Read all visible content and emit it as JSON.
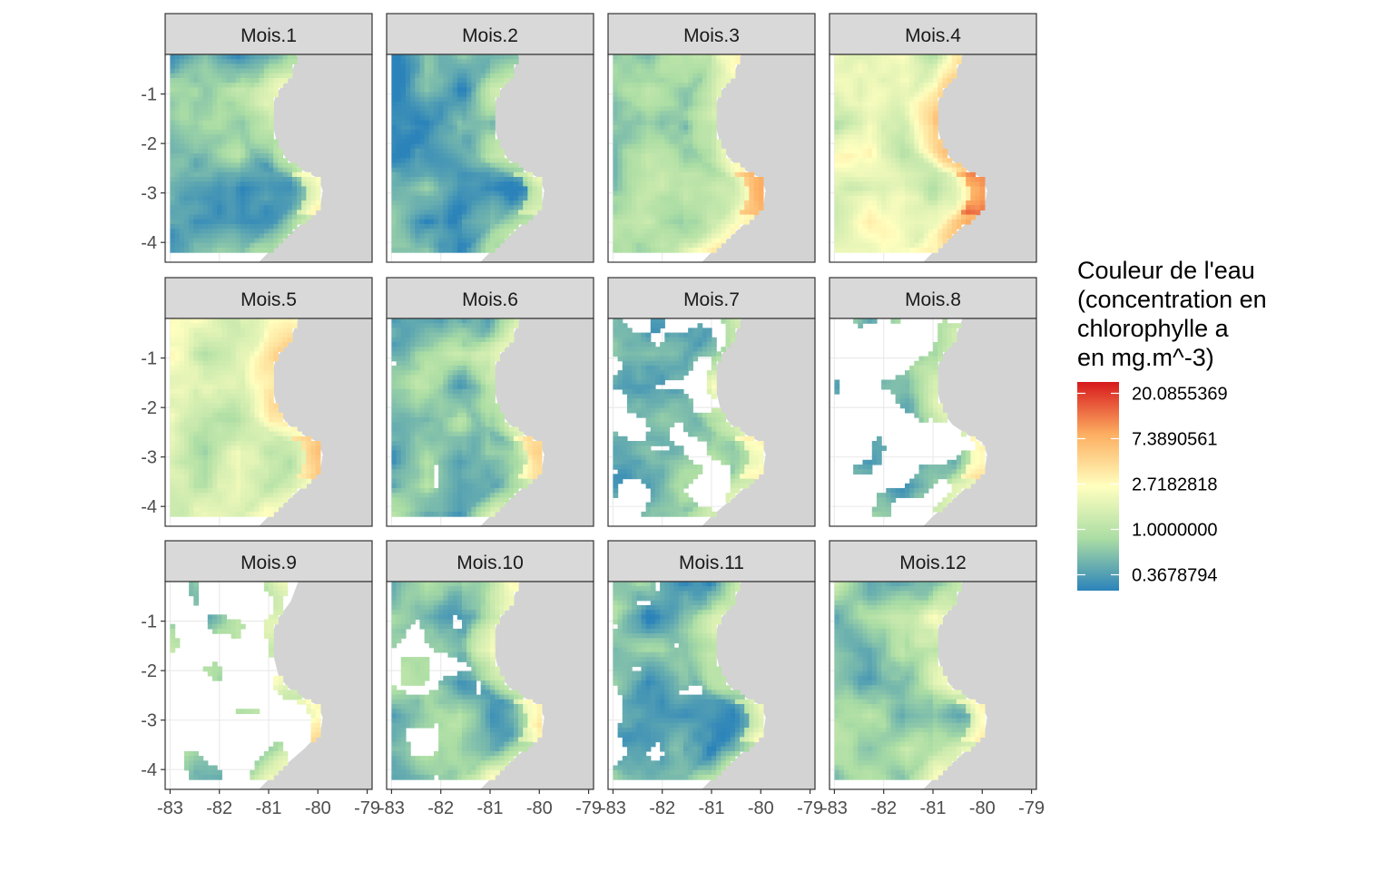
{
  "chart_data": {
    "type": "heatmap",
    "layout": "facet grid, 3 rows x 4 columns",
    "facets": [
      "Mois.1",
      "Mois.2",
      "Mois.3",
      "Mois.4",
      "Mois.5",
      "Mois.6",
      "Mois.7",
      "Mois.8",
      "Mois.9",
      "Mois.10",
      "Mois.11",
      "Mois.12"
    ],
    "x_axis": {
      "ticks": [
        -83,
        -82,
        -81,
        -80,
        -79
      ],
      "tick_labels": [
        "-83",
        "-82",
        "-81",
        "-80",
        "-79"
      ],
      "xlim": [
        -83.1,
        -78.9
      ]
    },
    "y_axis": {
      "ticks": [
        -1,
        -2,
        -3,
        -4
      ],
      "tick_labels": [
        "-1",
        "-2",
        "-3",
        "-4"
      ],
      "ylim": [
        -4.4,
        -0.2
      ]
    },
    "data_extent": {
      "lon": [
        -83.0,
        -79.0
      ],
      "lat": [
        -4.2,
        -0.2
      ]
    },
    "legend": {
      "title_lines": [
        "Couleur de l'eau",
        "(concentration en",
        "chlorophylle a",
        "en mg.m^-3)"
      ],
      "breaks": [
        20.0855369,
        7.3890561,
        2.7182818,
        1.0,
        0.3678794
      ],
      "labels": [
        "20.0855369",
        "7.3890561",
        "2.7182818",
        "1.0000000",
        "0.3678794"
      ],
      "scale": "log",
      "palette": [
        "#2b83ba",
        "#abdda4",
        "#ffffbf",
        "#fdae61",
        "#d7191c"
      ],
      "placement": "right"
    },
    "monthly_typical_chlorophyll_mg_m3": [
      0.55,
      0.35,
      0.9,
      1.8,
      1.4,
      0.6,
      0.55,
      0.55,
      0.7,
      0.55,
      0.45,
      0.6
    ],
    "monthly_valid_data_fraction": [
      1.0,
      0.95,
      1.0,
      1.0,
      1.0,
      0.85,
      0.45,
      0.2,
      0.2,
      0.65,
      0.75,
      0.97
    ],
    "land_color": "#d3d3d3",
    "panel_border_color": "#333333",
    "strip_fill": "#d9d9d9"
  }
}
